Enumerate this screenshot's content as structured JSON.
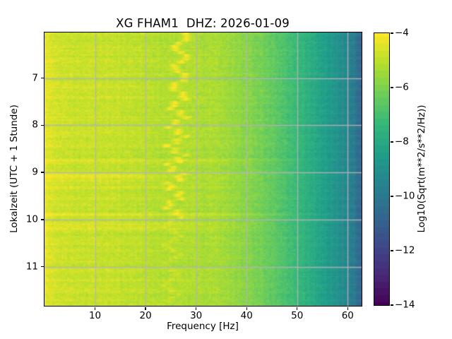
{
  "figure": {
    "background": "#ffffff"
  },
  "chart": {
    "title": "XG FHAM1  DHZ: 2026-01-09",
    "xlabel": "Frequency [Hz]",
    "ylabel": "Lokalzeit (UTC + 1 Stunde)",
    "colorbar_label": "Log10(Sqrt(m**2/s**2/Hz))"
  },
  "chart_data": {
    "type": "heatmap",
    "subtype": "spectrogram",
    "title": "XG FHAM1  DHZ: 2026-01-09",
    "x_axis": {
      "label": "Frequency [Hz]",
      "unit": "Hz",
      "range": [
        0,
        62.75
      ],
      "ticks": [
        10,
        20,
        30,
        40,
        50,
        60
      ]
    },
    "y_axis": {
      "label": "Lokalzeit (UTC + 1 Stunde)",
      "unit": "hour",
      "range": [
        6.03,
        11.83
      ],
      "ticks": [
        7,
        8,
        9,
        10,
        11
      ]
    },
    "color_axis": {
      "label": "Log10(Sqrt(m**2/s**2/Hz))",
      "range": [
        -14,
        -4
      ],
      "ticks": [
        -4,
        -6,
        -8,
        -10,
        -12,
        -14
      ],
      "tick_labels": [
        "−4",
        "−6",
        "−8",
        "−10",
        "−12",
        "−14"
      ],
      "colormap": "viridis",
      "colormap_stops": [
        [
          0.0,
          "#440154"
        ],
        [
          0.111,
          "#482878"
        ],
        [
          0.222,
          "#3e4989"
        ],
        [
          0.333,
          "#31688e"
        ],
        [
          0.444,
          "#26828e"
        ],
        [
          0.556,
          "#1f9e89"
        ],
        [
          0.667,
          "#35b779"
        ],
        [
          0.778,
          "#6ece58"
        ],
        [
          0.889,
          "#b5de2b"
        ],
        [
          1.0,
          "#fde725"
        ]
      ],
      "quantize_step": 0.25
    },
    "grid": {
      "show": true,
      "color": "#b5b5b5",
      "alpha": 0.9,
      "linewidth": 1.3
    },
    "background_spectrum": [
      [
        0,
        -4.75
      ],
      [
        3,
        -4.8
      ],
      [
        8,
        -4.85
      ],
      [
        14,
        -4.9
      ],
      [
        18,
        -5.0
      ],
      [
        24,
        -5.05
      ],
      [
        30,
        -5.1
      ],
      [
        34,
        -5.3
      ],
      [
        38,
        -5.6
      ],
      [
        42,
        -6.0
      ],
      [
        46,
        -6.6
      ],
      [
        50,
        -7.3
      ],
      [
        54,
        -8.1
      ],
      [
        57,
        -8.7
      ],
      [
        59.5,
        -9.3
      ],
      [
        61,
        -9.8
      ],
      [
        62.2,
        -10.6
      ],
      [
        62.75,
        -11.0
      ]
    ],
    "low_freq_boost": {
      "f_max": 4,
      "amount": 0.3
    },
    "band_dip": {
      "f_lo": 22,
      "f_hi": 31.5,
      "amount": 0.12
    },
    "tonal_feature": {
      "f_center_start": 27.1,
      "f_center_end": 24.8,
      "wiggle_period_hours": 0.42,
      "wiggle_amp_hz": 1.3,
      "wiggle2_period_hours": 0.13,
      "wiggle2_amp_hz": 0.7,
      "width_hz": 0.55,
      "boost": 1.0,
      "fade_start": 9.75,
      "fade_level": 0.4
    },
    "transient_streaks": [
      {
        "t": 6.35,
        "s": 0.22,
        "fmax": 30
      },
      {
        "t": 6.63,
        "s": 0.25,
        "fmax": 42
      },
      {
        "t": 6.95,
        "s": 0.18,
        "fmax": 26
      },
      {
        "t": 7.18,
        "s": 0.28,
        "fmax": 32
      },
      {
        "t": 7.42,
        "s": 0.38,
        "fmax": 50
      },
      {
        "t": 7.62,
        "s": 0.2,
        "fmax": 28
      },
      {
        "t": 7.82,
        "s": 0.25,
        "fmax": 45
      },
      {
        "t": 8.15,
        "s": 0.3,
        "fmax": 33
      },
      {
        "t": 8.45,
        "s": 0.22,
        "fmax": 28
      },
      {
        "t": 8.76,
        "s": 0.38,
        "fmax": 55
      },
      {
        "t": 9.08,
        "s": 0.55,
        "fmax": 30
      },
      {
        "t": 9.18,
        "s": 0.3,
        "fmax": 25
      },
      {
        "t": 9.32,
        "s": 0.38,
        "fmax": 44
      },
      {
        "t": 9.56,
        "s": 0.25,
        "fmax": 30
      },
      {
        "t": 9.9,
        "s": 0.42,
        "fmax": 55
      },
      {
        "t": 10.1,
        "s": 0.5,
        "fmax": 50
      },
      {
        "t": 10.2,
        "s": 0.45,
        "fmax": 46
      },
      {
        "t": 10.45,
        "s": 0.2,
        "fmax": 30
      },
      {
        "t": 10.67,
        "s": 0.25,
        "fmax": 38
      },
      {
        "t": 10.9,
        "s": 0.18,
        "fmax": 25
      },
      {
        "t": 11.1,
        "s": 0.22,
        "fmax": 30
      },
      {
        "t": 11.28,
        "s": 0.25,
        "fmax": 42
      },
      {
        "t": 11.5,
        "s": 0.28,
        "fmax": 40
      },
      {
        "t": 11.7,
        "s": 0.2,
        "fmax": 25
      },
      {
        "t": 7.0,
        "s": -0.16,
        "fmax": 62
      },
      {
        "t": 8.9,
        "s": -0.15,
        "fmax": 62
      },
      {
        "t": 10.33,
        "s": -0.2,
        "fmax": 58
      }
    ],
    "texture": {
      "cell_noise": 0.42,
      "row_noise_lowfreq": 0.22,
      "row_noise": 0.1,
      "col_noise": 0.12
    },
    "seed": 11
  }
}
